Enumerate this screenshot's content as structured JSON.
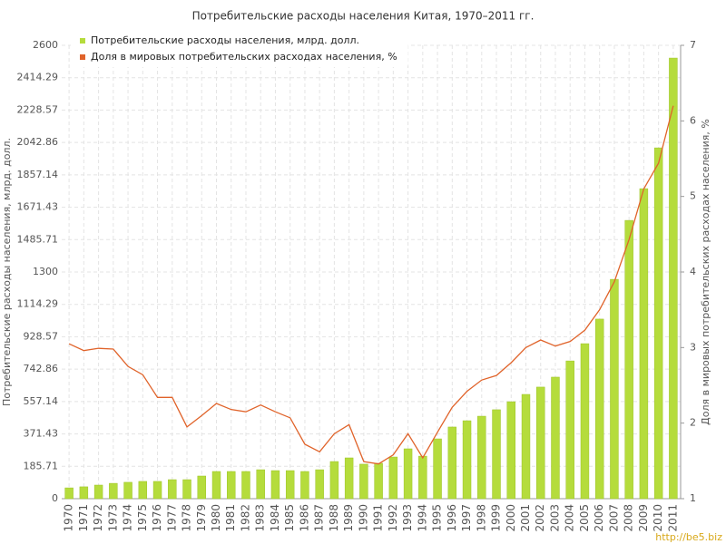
{
  "chart_data": {
    "type": "bar-line",
    "title": "Потребительские расходы населения Китая, 1970–2011 гг.",
    "y_label": "Потребительские расходы населения, млрд. долл.",
    "y2_label": "Доля в мировых потребительских расходах населения, %",
    "watermark": "http://be5.biz",
    "categories": [
      "1970",
      "1971",
      "1972",
      "1973",
      "1974",
      "1975",
      "1976",
      "1977",
      "1978",
      "1979",
      "1980",
      "1981",
      "1982",
      "1983",
      "1984",
      "1985",
      "1986",
      "1987",
      "1988",
      "1989",
      "1990",
      "1991",
      "1992",
      "1993",
      "1994",
      "1995",
      "1996",
      "1997",
      "1998",
      "1999",
      "2000",
      "2001",
      "2002",
      "2003",
      "2004",
      "2005",
      "2006",
      "2007",
      "2008",
      "2009",
      "2010",
      "2011"
    ],
    "series": [
      {
        "name": "Потребительские расходы населения, млрд. долл.",
        "color": "#b5dc3c",
        "kind": "bar",
        "values": [
          62,
          68,
          78,
          88,
          94,
          99,
          99,
          109,
          109,
          130,
          156,
          156,
          156,
          166,
          161,
          161,
          156,
          166,
          213,
          234,
          198,
          203,
          239,
          286,
          244,
          343,
          411,
          447,
          473,
          510,
          556,
          598,
          640,
          697,
          790,
          889,
          1030,
          1258,
          1596,
          1778,
          2012,
          2527
        ]
      },
      {
        "name": "Доля в мировых потребительских расходах населения, %",
        "color": "#e0632a",
        "kind": "line",
        "axis": "y2",
        "values": [
          3.05,
          2.96,
          2.99,
          2.98,
          2.75,
          2.64,
          2.34,
          2.34,
          1.95,
          2.1,
          2.26,
          2.18,
          2.15,
          2.24,
          2.15,
          2.07,
          1.72,
          1.62,
          1.86,
          1.98,
          1.49,
          1.46,
          1.58,
          1.86,
          1.54,
          1.88,
          2.21,
          2.42,
          2.57,
          2.63,
          2.8,
          3.0,
          3.1,
          3.02,
          3.08,
          3.23,
          3.5,
          3.87,
          4.43,
          5.1,
          5.44,
          6.2
        ]
      }
    ],
    "ylim": [
      0,
      2600
    ],
    "yticks": [
      0,
      185.71,
      371.43,
      557.14,
      742.86,
      928.57,
      1114.29,
      1300,
      1485.71,
      1671.43,
      1857.14,
      2042.86,
      2228.57,
      2414.29,
      2600
    ],
    "y2lim": [
      1,
      7
    ],
    "y2ticks": [
      1,
      2,
      3,
      4,
      5,
      6,
      7
    ],
    "grid": true,
    "legend": "top-left"
  }
}
